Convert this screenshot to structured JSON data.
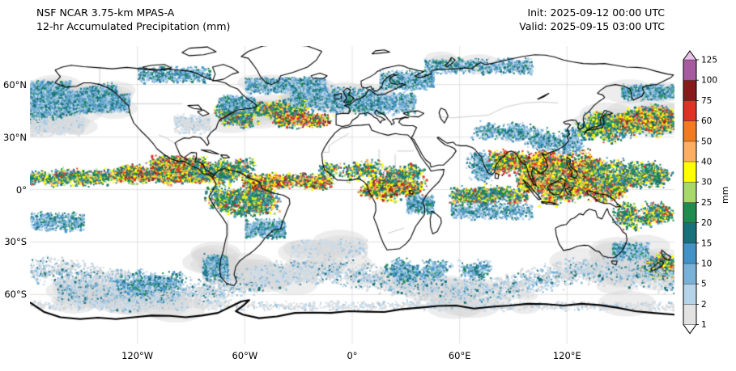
{
  "header": {
    "title_line1": "NSF NCAR 3.75-km MPAS-A",
    "title_line2": "12-hr Accumulated Precipitation (mm)",
    "init_label": "Init: 2025-09-12 00:00 UTC",
    "valid_label": "Valid: 2025-09-15 03:00 UTC"
  },
  "map": {
    "y_ticks": [
      "60°N",
      "30°N",
      "0°",
      "30°S",
      "60°S"
    ],
    "x_ticks": [
      "120°W",
      "60°W",
      "0°",
      "60°E",
      "120°E"
    ]
  },
  "colorbar": {
    "unit_label": "mm",
    "tick_labels_top_to_bottom": [
      "125",
      "100",
      "75",
      "60",
      "50",
      "40",
      "30",
      "25",
      "20",
      "15",
      "10",
      "5",
      "2",
      "1"
    ],
    "levels_mm": [
      1,
      2,
      5,
      10,
      15,
      20,
      25,
      30,
      40,
      50,
      60,
      75,
      100,
      125
    ],
    "segment_colors_bottom_to_top": [
      "#e2e2e2",
      "#b5d4ea",
      "#7ab1d8",
      "#4292c6",
      "#17707a",
      "#1e8c4f",
      "#a6d96a",
      "#ffff00",
      "#fdae61",
      "#f47a20",
      "#e03127",
      "#891a1a",
      "#a65ba0"
    ],
    "under_color": "#ffffff",
    "over_color": "#e6c3e6"
  },
  "chart_data": {
    "type": "heatmap",
    "title": "12-hr Accumulated Precipitation (mm)",
    "model": "NSF NCAR 3.75-km MPAS-A",
    "init_time": "2025-09-12 00:00 UTC",
    "valid_time": "2025-09-15 03:00 UTC",
    "projection": "global equirectangular world map, lon -180..180, lat ~-85..82",
    "xlabel_ticks": [
      "120°W",
      "60°W",
      "0°",
      "60°E",
      "120°E"
    ],
    "ylabel_ticks": [
      "60°N",
      "30°N",
      "0°",
      "30°S",
      "60°S"
    ],
    "colorbar_units": "mm",
    "colorbar_levels": [
      1,
      2,
      5,
      10,
      15,
      20,
      25,
      30,
      40,
      50,
      60,
      75,
      100,
      125
    ],
    "legend_position": "right vertical colorbar with over/under arrows",
    "grid": true,
    "notable_features": [
      "heavy ITCZ precipitation band (yellow/orange/red) across tropical Pacific and Atlantic near 5-10N",
      "very heavy convection over Maritime Continent / West Pacific and Southeast Asia",
      "convective clusters over Amazonia, Central America and equatorial Africa",
      "midlatitude storm tracks: Gulf of Alaska, NW Pacific near Japan/Kamchatka, North Atlantic",
      "broad light-gray/blue frontal bands across the Southern Ocean around 45-65S"
    ]
  }
}
